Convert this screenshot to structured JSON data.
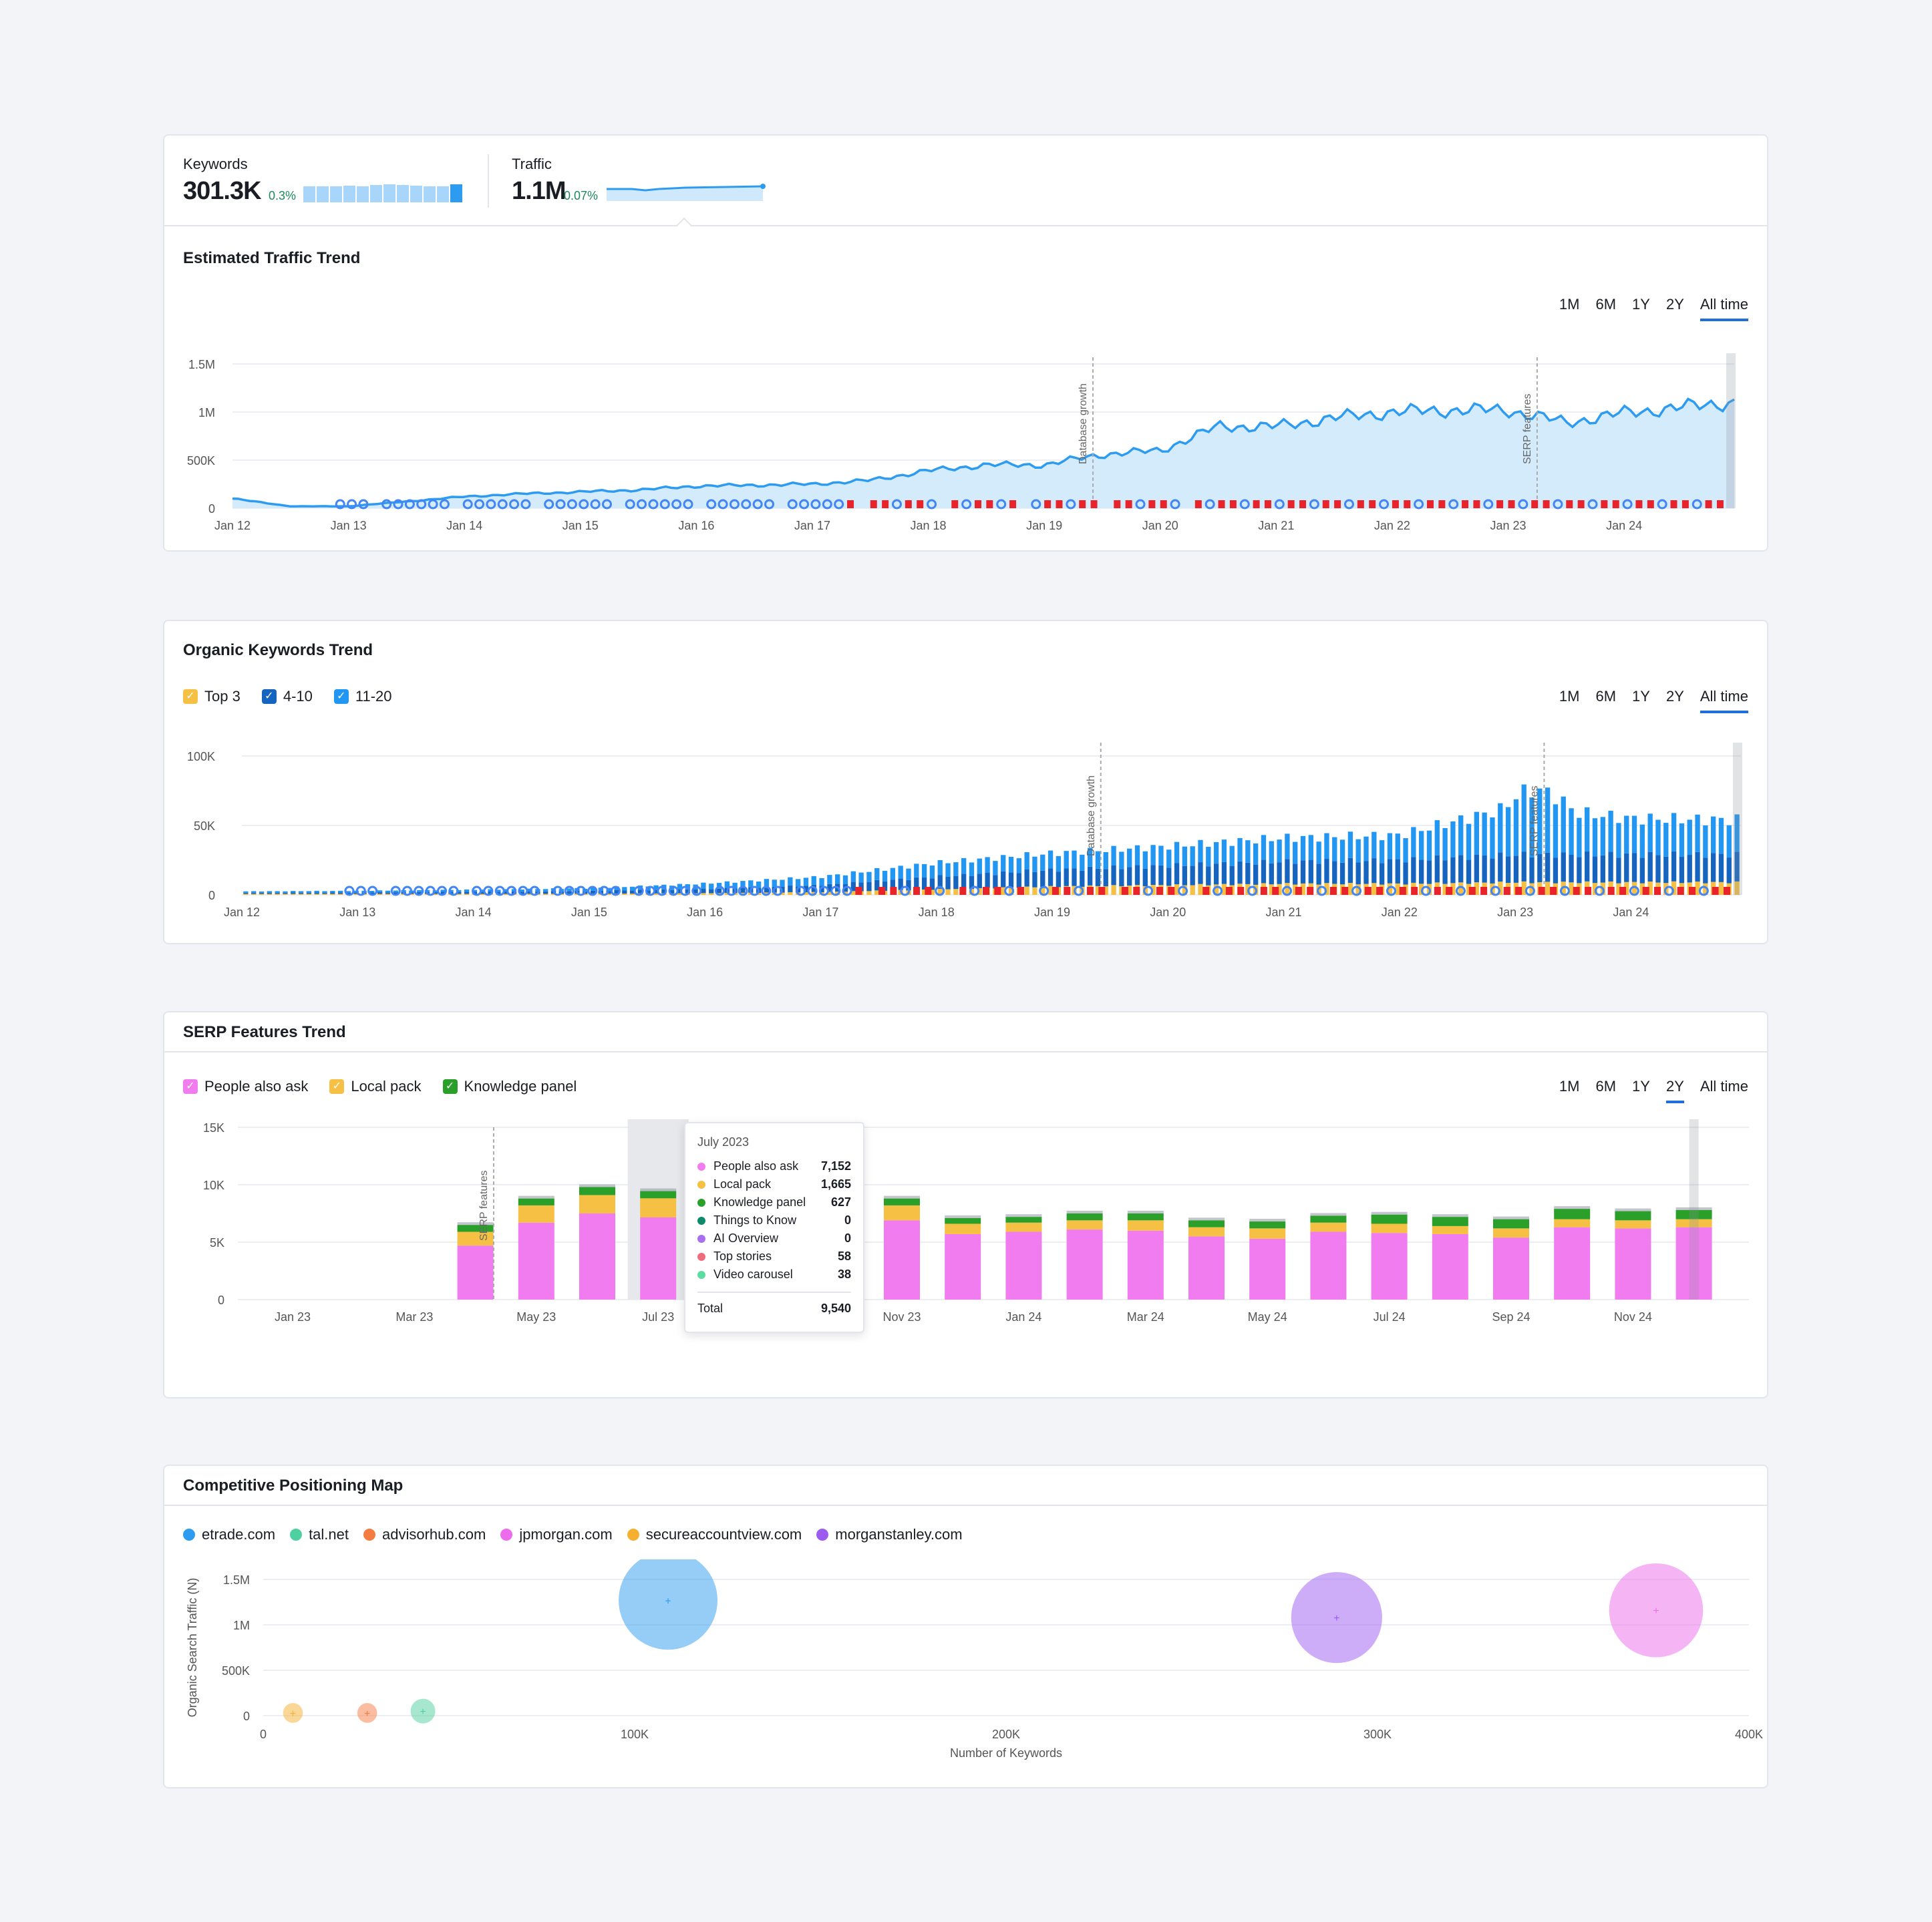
{
  "summary": {
    "keywords_label": "Keywords",
    "keywords_value": "301.3K",
    "keywords_delta": "0.3%",
    "keywords_spark": [
      0.7,
      0.72,
      0.7,
      0.74,
      0.72,
      0.76,
      0.78,
      0.76,
      0.74,
      0.72,
      0.72,
      0.8
    ],
    "traffic_label": "Traffic",
    "traffic_value": "1.1M",
    "traffic_delta": "0.07%"
  },
  "traffic_trend": {
    "title": "Estimated Traffic Trend",
    "ranges": [
      "1M",
      "6M",
      "1Y",
      "2Y",
      "All time"
    ],
    "active_range": "All time",
    "annotations": [
      "Database growth",
      "SERP features"
    ]
  },
  "keywords_trend": {
    "title": "Organic Keywords Trend",
    "legend": [
      {
        "label": "Top 3",
        "color": "#f5c043"
      },
      {
        "label": "4-10",
        "color": "#1565c0"
      },
      {
        "label": "11-20",
        "color": "#2196f3"
      }
    ],
    "ranges": [
      "1M",
      "6M",
      "1Y",
      "2Y",
      "All time"
    ],
    "active_range": "All time",
    "annotations": [
      "Database growth",
      "SERP features"
    ]
  },
  "serp_trend": {
    "title": "SERP Features Trend",
    "legend": [
      {
        "label": "People also ask",
        "color": "#f07cf0"
      },
      {
        "label": "Local pack",
        "color": "#f5c043"
      },
      {
        "label": "Knowledge panel",
        "color": "#2aa02a"
      }
    ],
    "ranges": [
      "1M",
      "6M",
      "1Y",
      "2Y",
      "All time"
    ],
    "active_range": "2Y",
    "annotation": "SERP features",
    "tooltip": {
      "title": "July 2023",
      "rows": [
        {
          "label": "People also ask",
          "value": "7,152",
          "color": "#f07cf0"
        },
        {
          "label": "Local pack",
          "value": "1,665",
          "color": "#f5c043"
        },
        {
          "label": "Knowledge panel",
          "value": "627",
          "color": "#2aa02a"
        },
        {
          "label": "Things to Know",
          "value": "0",
          "color": "#0e8a6a"
        },
        {
          "label": "AI Overview",
          "value": "0",
          "color": "#a86ff0"
        },
        {
          "label": "Top stories",
          "value": "58",
          "color": "#f06c7c"
        },
        {
          "label": "Video carousel",
          "value": "38",
          "color": "#5cdca0"
        }
      ],
      "total_label": "Total",
      "total_value": "9,540"
    }
  },
  "positioning": {
    "title": "Competitive Positioning Map",
    "domains": [
      {
        "label": "etrade.com",
        "color": "#2d9cf0"
      },
      {
        "label": "tal.net",
        "color": "#4fd0a0"
      },
      {
        "label": "advisorhub.com",
        "color": "#f57c40"
      },
      {
        "label": "jpmorgan.com",
        "color": "#ec6cec"
      },
      {
        "label": "secureaccountview.com",
        "color": "#f5b030"
      },
      {
        "label": "morganstanley.com",
        "color": "#9c5cf0"
      }
    ]
  },
  "chart_data": [
    {
      "type": "area",
      "title": "Estimated Traffic Trend",
      "x_ticks": [
        "Jan 12",
        "Jan 13",
        "Jan 14",
        "Jan 15",
        "Jan 16",
        "Jan 17",
        "Jan 18",
        "Jan 19",
        "Jan 20",
        "Jan 21",
        "Jan 22",
        "Jan 23",
        "Jan 24"
      ],
      "y_ticks": [
        "0",
        "500K",
        "1M",
        "1.5M"
      ],
      "ylim": [
        0,
        1500000
      ],
      "x": [
        2012.0,
        2012.5,
        2013.0,
        2013.5,
        2014.0,
        2014.5,
        2015.0,
        2015.5,
        2016.0,
        2016.5,
        2017.0,
        2017.5,
        2018.0,
        2018.5,
        2019.0,
        2019.5,
        2020.0,
        2020.5,
        2021.0,
        2021.5,
        2022.0,
        2022.5,
        2023.0,
        2023.5,
        2024.0,
        2024.5,
        2024.9
      ],
      "values": [
        100000,
        20000,
        20000,
        70000,
        120000,
        150000,
        170000,
        190000,
        230000,
        240000,
        250000,
        290000,
        390000,
        450000,
        450000,
        560000,
        600000,
        850000,
        850000,
        940000,
        1000000,
        1020000,
        1020000,
        890000,
        990000,
        1050000,
        1100000
      ]
    },
    {
      "type": "bar",
      "title": "Organic Keywords Trend",
      "x_ticks": [
        "Jan 12",
        "Jan 13",
        "Jan 14",
        "Jan 15",
        "Jan 16",
        "Jan 17",
        "Jan 18",
        "Jan 19",
        "Jan 20",
        "Jan 21",
        "Jan 22",
        "Jan 23",
        "Jan 24"
      ],
      "y_ticks": [
        "0",
        "50K",
        "100K"
      ],
      "ylim": [
        0,
        100000
      ],
      "x": [
        2012,
        2013,
        2014,
        2015,
        2016,
        2017,
        2018,
        2019,
        2020,
        2021,
        2022,
        2023,
        2024,
        2024.9
      ],
      "series": [
        {
          "name": "Top 3",
          "values": [
            300,
            400,
            600,
            800,
            1200,
            2000,
            4000,
            6000,
            7000,
            8000,
            8000,
            9000,
            9000,
            9000
          ]
        },
        {
          "name": "4-10",
          "values": [
            800,
            1000,
            1500,
            2000,
            3000,
            5000,
            9000,
            12000,
            14000,
            16000,
            17000,
            20000,
            20000,
            20000
          ]
        },
        {
          "name": "11-20",
          "values": [
            1000,
            1200,
            1500,
            2000,
            4000,
            6000,
            10000,
            12000,
            14000,
            17000,
            18000,
            35000,
            26000,
            25000
          ]
        }
      ]
    },
    {
      "type": "bar",
      "title": "SERP Features Trend",
      "x_ticks": [
        "Jan 23",
        "Mar 23",
        "May 23",
        "Jul 23",
        "Sep 23",
        "Nov 23",
        "Jan 24",
        "Mar 24",
        "May 24",
        "Jul 24",
        "Sep 24",
        "Nov 24"
      ],
      "y_ticks": [
        "0",
        "5K",
        "10K",
        "15K"
      ],
      "ylim": [
        0,
        15000
      ],
      "categories": [
        "Apr 23",
        "May 23",
        "Jun 23",
        "Jul 23",
        "Aug 23",
        "Sep 23",
        "Oct 23",
        "Nov 23",
        "Dec 23",
        "Jan 24",
        "Feb 24",
        "Mar 24",
        "Apr 24",
        "May 24",
        "Jun 24",
        "Jul 24",
        "Aug 24",
        "Sep 24",
        "Oct 24",
        "Nov 24",
        "Dec 24"
      ],
      "series": [
        {
          "name": "People also ask",
          "values": [
            4700,
            6700,
            7500,
            7152,
            7000,
            6800,
            6900,
            6900,
            5700,
            5900,
            6100,
            6000,
            5500,
            5300,
            5900,
            5800,
            5700,
            5400,
            6300,
            6200,
            6300
          ]
        },
        {
          "name": "Local pack",
          "values": [
            1200,
            1500,
            1600,
            1665,
            1500,
            1400,
            1400,
            1300,
            900,
            800,
            800,
            900,
            800,
            900,
            800,
            800,
            700,
            800,
            700,
            700,
            700
          ]
        },
        {
          "name": "Knowledge panel",
          "values": [
            600,
            600,
            700,
            627,
            600,
            600,
            600,
            600,
            500,
            500,
            600,
            600,
            600,
            600,
            600,
            800,
            800,
            800,
            900,
            800,
            800
          ]
        }
      ]
    },
    {
      "type": "scatter",
      "title": "Competitive Positioning Map",
      "xlabel": "Number of Keywords",
      "ylabel": "Organic Search Traffic (N)",
      "x_ticks": [
        "0",
        "100K",
        "200K",
        "300K",
        "400K"
      ],
      "y_ticks": [
        "0",
        "500K",
        "1M",
        "1.5M"
      ],
      "xlim": [
        0,
        400000
      ],
      "ylim": [
        0,
        1500000
      ],
      "points": [
        {
          "name": "etrade.com",
          "x": 109000,
          "y": 1270000,
          "size": 1.0
        },
        {
          "name": "tal.net",
          "x": 43000,
          "y": 50000,
          "size": 0.25
        },
        {
          "name": "advisorhub.com",
          "x": 28000,
          "y": 30000,
          "size": 0.2
        },
        {
          "name": "jpmorgan.com",
          "x": 375000,
          "y": 1160000,
          "size": 0.95
        },
        {
          "name": "secureaccountview.com",
          "x": 8000,
          "y": 30000,
          "size": 0.2
        },
        {
          "name": "morganstanley.com",
          "x": 289000,
          "y": 1080000,
          "size": 0.92
        }
      ]
    }
  ]
}
